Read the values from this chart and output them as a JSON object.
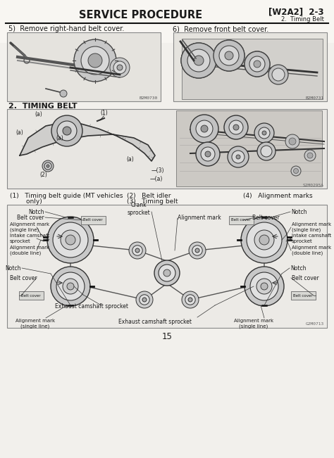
{
  "page_bg": "#f2f0ec",
  "white": "#ffffff",
  "text_color": "#1a1a1a",
  "box_border": "#888888",
  "box_fill": "#eeece8",
  "title_text": "SERVICE PROCEDURE",
  "title_right_bold": "[W2A2]  2-3",
  "title_right_small": "2.  Timing Belt",
  "section5_label": "5)  Remove right-hand belt cover.",
  "section6_label": "6)  Remove front belt cover.",
  "img5_code": "B2M0730",
  "img6_code": "B2M0731",
  "timing_belt_section": "2.  TIMING BELT",
  "timing_img_code": "S2M0295A",
  "legend_1a": "(1)   Timing belt guide (MT vehicles",
  "legend_1b": "        only)",
  "legend_23a": "(2)   Belt idler",
  "legend_23b": "(3)   Timing belt",
  "legend_4": "(4)   Alignment marks",
  "diagram_code": "G2M0713",
  "page_number": "15",
  "label_fs": 5.5,
  "title_fs": 10.5,
  "section_fs": 7.0,
  "legend_fs": 6.5
}
